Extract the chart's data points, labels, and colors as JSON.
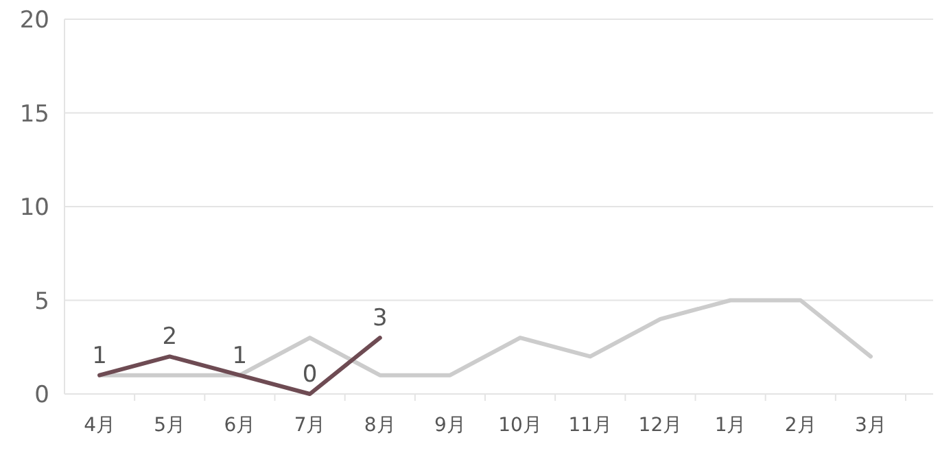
{
  "chart_data": {
    "type": "line",
    "categories": [
      "4月",
      "5月",
      "6月",
      "7月",
      "8月",
      "9月",
      "10月",
      "11月",
      "12月",
      "1月",
      "2月",
      "3月"
    ],
    "series": [
      {
        "color": "#cccccc",
        "values": [
          1,
          1,
          1,
          3,
          1,
          1,
          3,
          2,
          4,
          5,
          5,
          2
        ]
      },
      {
        "color": "#6e4b53",
        "values": [
          1,
          2,
          1,
          0,
          3,
          null,
          null,
          null,
          null,
          null,
          null,
          null
        ],
        "value_labels": [
          "1",
          "2",
          "1",
          "0",
          "3",
          null,
          null,
          null,
          null,
          null,
          null,
          null
        ]
      }
    ],
    "ylim": [
      0,
      20
    ],
    "yticks": [
      0,
      5,
      10,
      15,
      20
    ],
    "grid": "y",
    "marker": "none",
    "line_style": "solid"
  }
}
